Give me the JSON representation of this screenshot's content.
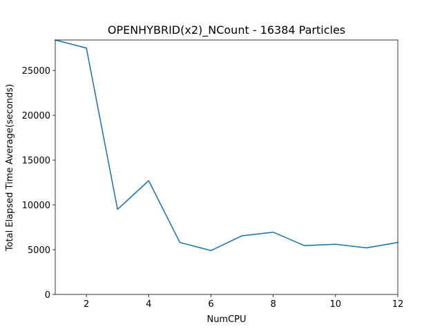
{
  "chart_data": {
    "type": "line",
    "title": "OPENHYBRID(x2)_NCount - 16384 Particles",
    "xlabel": "NumCPU",
    "ylabel": "Total Elapsed Time Average(seconds)",
    "xlim": [
      1,
      12
    ],
    "ylim": [
      0,
      28400
    ],
    "xticks": [
      2,
      4,
      6,
      8,
      10,
      12
    ],
    "yticks": [
      0,
      5000,
      10000,
      15000,
      20000,
      25000
    ],
    "grid": false,
    "series": [
      {
        "color": "#1f77b4",
        "x": [
          1,
          2,
          3,
          4,
          5,
          6,
          7,
          8,
          9,
          10,
          11,
          12
        ],
        "y": [
          28400,
          27500,
          9500,
          12700,
          5800,
          4900,
          6550,
          6950,
          5450,
          5600,
          5200,
          5800
        ]
      }
    ]
  }
}
